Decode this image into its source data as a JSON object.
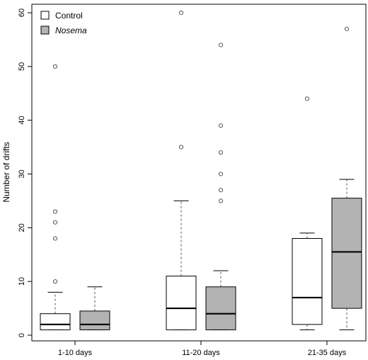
{
  "chart_data": {
    "type": "boxplot",
    "title": "",
    "xlabel": "",
    "ylabel": "Number of drifts",
    "ylim": [
      0,
      60
    ],
    "yticks": [
      0,
      10,
      20,
      30,
      40,
      50,
      60
    ],
    "categories": [
      "1-10 days",
      "11-20 days",
      "21-35 days"
    ],
    "grid": false,
    "legend": {
      "placement": "top-left",
      "entries": [
        {
          "label": "Control",
          "color": "#ffffff",
          "italic": false
        },
        {
          "label": "Nosema",
          "color": "#b3b3b3",
          "italic": true
        }
      ]
    },
    "series": [
      {
        "name": "Control",
        "color": "#ffffff",
        "boxes": [
          {
            "whisker_low": 1,
            "q1": 1,
            "median": 2,
            "q3": 4,
            "whisker_high": 8,
            "outliers": [
              10,
              18,
              21,
              23,
              50
            ]
          },
          {
            "whisker_low": 1,
            "q1": 1,
            "median": 5,
            "q3": 11,
            "whisker_high": 25,
            "outliers": [
              35,
              60
            ]
          },
          {
            "whisker_low": 1,
            "q1": 2,
            "median": 7,
            "q3": 18,
            "whisker_high": 19,
            "outliers": [
              44
            ]
          }
        ]
      },
      {
        "name": "Nosema",
        "color": "#b3b3b3",
        "boxes": [
          {
            "whisker_low": 1,
            "q1": 1,
            "median": 2,
            "q3": 4.5,
            "whisker_high": 9,
            "outliers": []
          },
          {
            "whisker_low": 1,
            "q1": 1,
            "median": 4,
            "q3": 9,
            "whisker_high": 12,
            "outliers": [
              25,
              27,
              30,
              34,
              39,
              54
            ]
          },
          {
            "whisker_low": 1,
            "q1": 5,
            "median": 15.5,
            "q3": 25.5,
            "whisker_high": 29,
            "outliers": [
              57
            ]
          }
        ]
      }
    ]
  }
}
